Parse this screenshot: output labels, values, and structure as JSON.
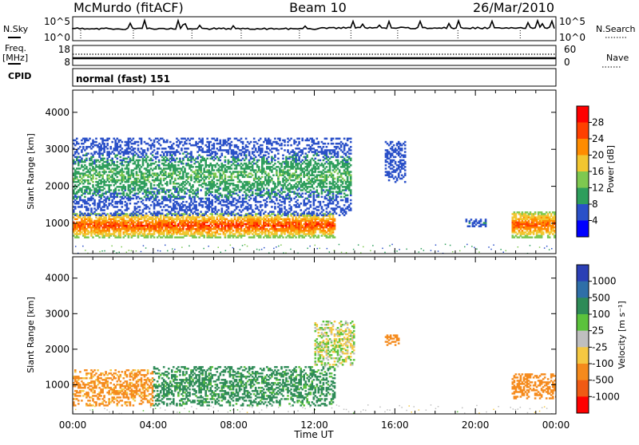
{
  "header": {
    "station": "McMurdo (fitACF)",
    "beam": "Beam 10",
    "date": "26/Mar/2010"
  },
  "strip_nsky": {
    "left_label": "N.Sky",
    "right_label": "N.Search",
    "left_ticks": [
      "10^5",
      "10^0"
    ],
    "right_ticks": [
      "10^5",
      "10^0"
    ]
  },
  "strip_freq": {
    "left_label": "Freq.",
    "left_unit": "[MHz]",
    "right_label": "Nave",
    "left_ticks": [
      "18",
      "8"
    ],
    "right_ticks": [
      "60",
      "0"
    ]
  },
  "cpid": {
    "label": "CPID",
    "value": "normal (fast) 151"
  },
  "panels": {
    "ylabel": "Slant Range [km]",
    "xlabel": "Time UT",
    "x_ticks": [
      "00:00",
      "04:00",
      "08:00",
      "12:00",
      "16:00",
      "20:00",
      "00:00"
    ],
    "y_ticks": [
      "1000",
      "2000",
      "3000",
      "4000"
    ]
  },
  "power_scale": {
    "label": "Power [dB]",
    "ticks": [
      "4",
      "8",
      "12",
      "16",
      "20",
      "24",
      "28"
    ],
    "colors": [
      "#0000ff",
      "#2a50c8",
      "#2e9e5c",
      "#7ec850",
      "#f2c630",
      "#ff8c00",
      "#ff4000",
      "#ff0000"
    ]
  },
  "velocity_scale": {
    "label": "Velocity [m s⁻¹]",
    "ticks": [
      "1000",
      "500",
      "100",
      "25",
      "-25",
      "-100",
      "-500",
      "-1000"
    ],
    "colors": [
      "#2b3fb5",
      "#2f6fa8",
      "#2e8b57",
      "#5bc23c",
      "#bfbfbf",
      "#f5c842",
      "#f58a1c",
      "#f05a14",
      "#ff0000"
    ]
  },
  "chart_data": [
    {
      "type": "heatmap",
      "title": "",
      "xlabel": "Time UT",
      "ylabel": "Slant Range [km]",
      "colorbar_label": "Power [dB]",
      "xlim": [
        "00:00",
        "24:00"
      ],
      "ylim": [
        180,
        4600
      ],
      "colorbar_range": [
        0,
        32
      ],
      "regions": [
        {
          "t_start": 0.0,
          "t_end": 13.0,
          "range_km": [
            600,
            1250
          ],
          "power_db": [
            14,
            30
          ],
          "note": "core band, peaks near 700-900 km"
        },
        {
          "t_start": 0.0,
          "t_end": 13.8,
          "range_km": [
            1200,
            3300
          ],
          "power_db": [
            4,
            14
          ]
        },
        {
          "t_start": 15.5,
          "t_end": 16.5,
          "range_km": [
            2100,
            3200
          ],
          "power_db": [
            4,
            8
          ]
        },
        {
          "t_start": 19.5,
          "t_end": 20.5,
          "range_km": [
            900,
            1100
          ],
          "power_db": [
            4,
            10
          ]
        },
        {
          "t_start": 21.8,
          "t_end": 24.0,
          "range_km": [
            600,
            1300
          ],
          "power_db": [
            14,
            28
          ]
        }
      ]
    },
    {
      "type": "heatmap",
      "title": "",
      "xlabel": "Time UT",
      "ylabel": "Slant Range [km]",
      "colorbar_label": "Velocity [m s⁻¹]",
      "xlim": [
        "00:00",
        "24:00"
      ],
      "ylim": [
        180,
        4600
      ],
      "colorbar_range": [
        -1000,
        1000
      ],
      "regions": [
        {
          "t_start": 0.0,
          "t_end": 4.0,
          "range_km": [
            400,
            1400
          ],
          "velocity_ms": [
            -500,
            -25
          ]
        },
        {
          "t_start": 4.0,
          "t_end": 13.0,
          "range_km": [
            400,
            1500
          ],
          "velocity_ms": [
            25,
            500
          ]
        },
        {
          "t_start": 12.0,
          "t_end": 14.0,
          "range_km": [
            1500,
            2800
          ],
          "velocity_ms": [
            -100,
            100
          ]
        },
        {
          "t_start": 15.5,
          "t_end": 16.2,
          "range_km": [
            2100,
            2400
          ],
          "velocity_ms": [
            -500,
            -100
          ]
        },
        {
          "t_start": 21.8,
          "t_end": 24.0,
          "range_km": [
            600,
            1300
          ],
          "velocity_ms": [
            -500,
            -100
          ]
        }
      ]
    }
  ]
}
